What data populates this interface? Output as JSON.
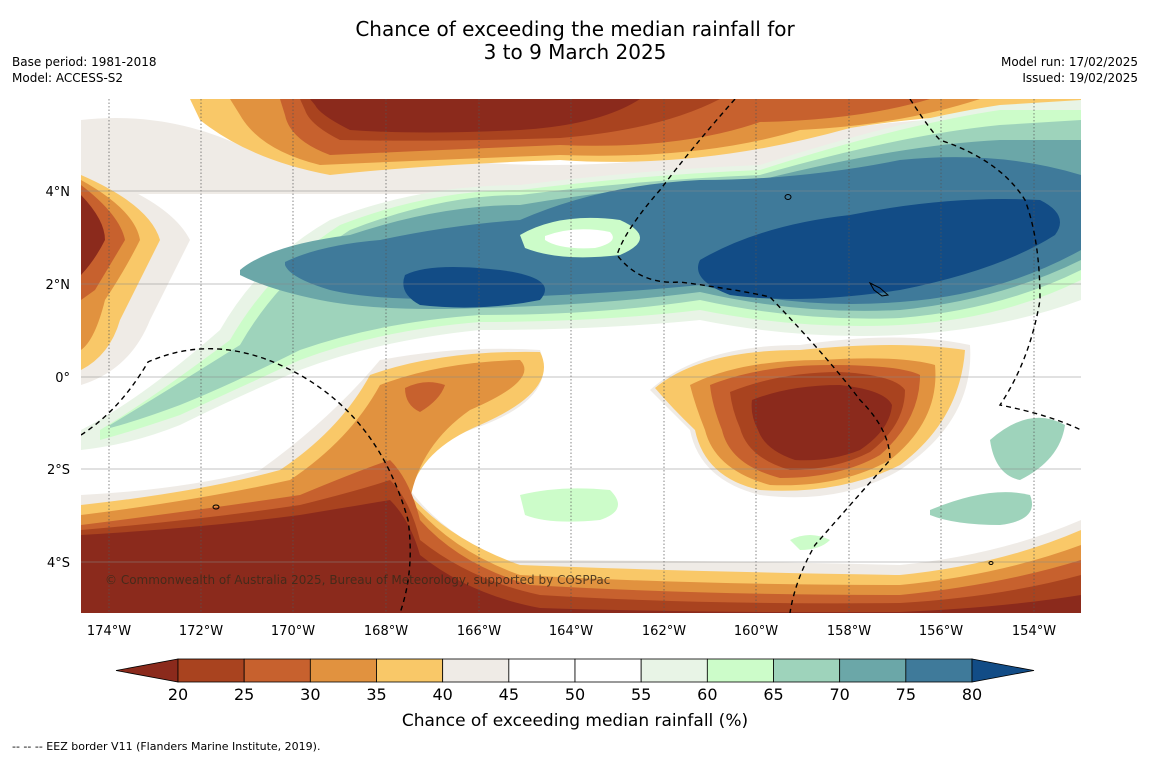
{
  "title": {
    "line1": "Chance of exceeding the median rainfall for",
    "line2": "3 to 9 March 2025"
  },
  "meta_left": {
    "base_period": "Base period: 1981-2018",
    "model": "Model: ACCESS-S2"
  },
  "meta_right": {
    "model_run": "Model run: 17/02/2025",
    "issued": "Issued: 19/02/2025"
  },
  "map": {
    "lon_labels": [
      "174°W",
      "172°W",
      "170°W",
      "168°W",
      "166°W",
      "164°W",
      "162°W",
      "160°W",
      "158°W",
      "156°W",
      "154°W"
    ],
    "lat_labels": [
      "4°N",
      "2°N",
      "0°",
      "2°S",
      "4°S"
    ],
    "copyright": "© Commonwealth of Australia 2025, Bureau of Meteorology, supported by COSPPac"
  },
  "colorbar": {
    "ticks": [
      "20",
      "25",
      "30",
      "35",
      "40",
      "45",
      "50",
      "55",
      "60",
      "65",
      "70",
      "75",
      "80"
    ],
    "colors": [
      "#8b2a1c",
      "#a9431f",
      "#c7612e",
      "#e1923f",
      "#f9c868",
      "#efebe6",
      "#ffffff",
      "#ffffff",
      "#e8f4e6",
      "#ccfcc9",
      "#9ed3bb",
      "#6ba7a8",
      "#3f7a9a",
      "#124c86"
    ],
    "label": "Chance of exceeding median rainfall (%)"
  },
  "footnote": "--  --  -- EEZ border V11 (Flanders Marine Institute, 2019)."
}
